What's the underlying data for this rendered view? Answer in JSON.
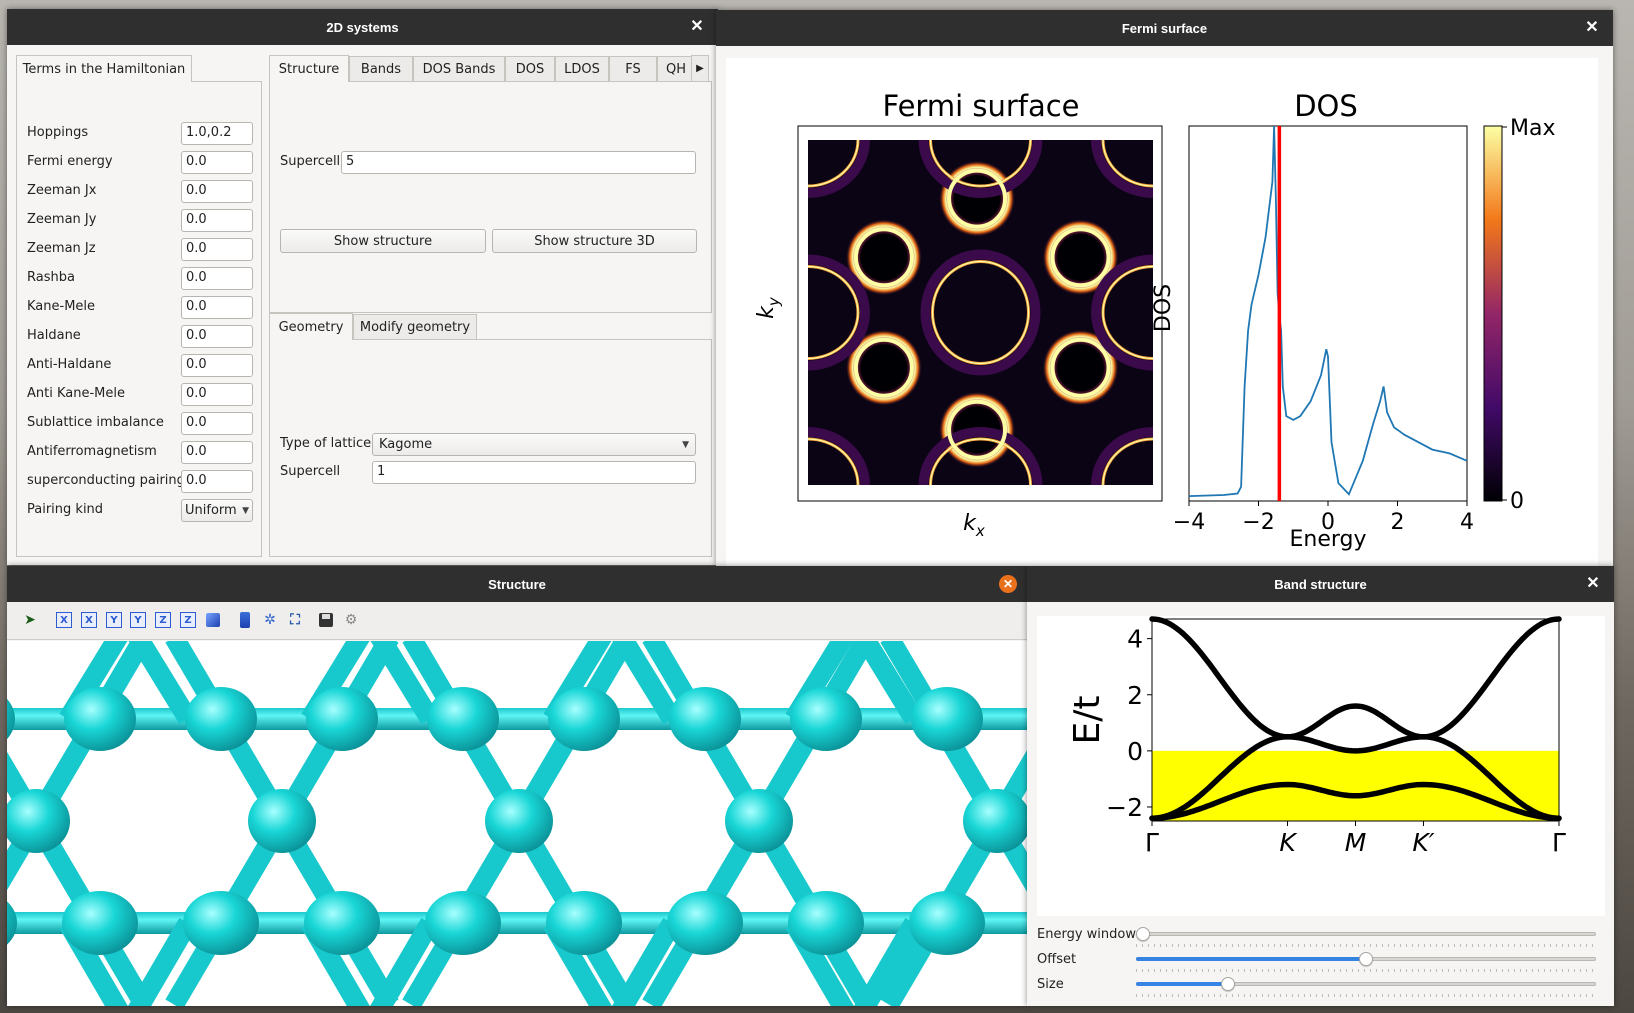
{
  "windows": {
    "systems": {
      "title": "2D systems"
    },
    "fermi": {
      "title": "Fermi surface"
    },
    "structure": {
      "title": "Structure"
    },
    "bands": {
      "title": "Band structure"
    }
  },
  "hamiltonian": {
    "tab_label": "Terms in the Hamiltonian",
    "fields": [
      {
        "label": "Hoppings",
        "value": "1.0,0.2"
      },
      {
        "label": "Fermi energy",
        "value": "0.0"
      },
      {
        "label": "Zeeman Jx",
        "value": "0.0"
      },
      {
        "label": "Zeeman Jy",
        "value": "0.0"
      },
      {
        "label": "Zeeman Jz",
        "value": "0.0"
      },
      {
        "label": "Rashba",
        "value": "0.0"
      },
      {
        "label": "Kane-Mele",
        "value": "0.0"
      },
      {
        "label": "Haldane",
        "value": "0.0"
      },
      {
        "label": "Anti-Haldane",
        "value": "0.0"
      },
      {
        "label": "Anti Kane-Mele",
        "value": "0.0"
      },
      {
        "label": "Sublattice imbalance",
        "value": "0.0"
      },
      {
        "label": "Antiferromagnetism",
        "value": "0.0"
      },
      {
        "label": "superconducting pairing",
        "value": "0.0"
      }
    ],
    "pairing_kind": {
      "label": "Pairing kind",
      "value": "Uniform"
    }
  },
  "analysis_tabs": [
    "Structure",
    "Bands",
    "DOS Bands",
    "DOS",
    "LDOS",
    "FS",
    "QH"
  ],
  "structure_tab": {
    "supercell_label": "Supercell",
    "supercell_value": "5",
    "show_structure": "Show structure",
    "show_structure_3d": "Show structure 3D"
  },
  "geometry_tabs": [
    "Geometry",
    "Modify geometry"
  ],
  "geometry": {
    "lattice_label": "Type of lattice",
    "lattice_value": "Kagome",
    "supercell_label": "Supercell",
    "supercell_value": "1"
  },
  "fermi_plot": {
    "fs_title": "Fermi surface",
    "dos_title": "DOS",
    "kx": "k",
    "kx_sub": "x",
    "ky": "k",
    "ky_sub": "y",
    "dos_ylabel": "DOS",
    "dos_xlabel": "Energy",
    "cbar_max": "Max",
    "cbar_min": "0",
    "dos_xticks": [
      "−4",
      "−2",
      "0",
      "2",
      "4"
    ]
  },
  "toolbar_icons": [
    "select-icon",
    "view-x-icon",
    "view-x-neg-icon",
    "view-y-icon",
    "view-y-neg-icon",
    "view-z-icon",
    "view-z-neg-icon",
    "iso-view-icon",
    "parallel-projection-icon",
    "axes-icon",
    "fit-view-icon",
    "save-icon",
    "settings-icon"
  ],
  "toolbar_labels": {
    "x": "X",
    "y": "Y",
    "z": "Z"
  },
  "band_sliders": [
    {
      "label": "Energy window",
      "value": 0.0
    },
    {
      "label": "Offset",
      "value": 0.5
    },
    {
      "label": "Size",
      "value": 0.19
    }
  ],
  "chart_data": [
    {
      "type": "line",
      "title": "DOS",
      "xlabel": "Energy",
      "ylabel": "DOS",
      "xlim": [
        -4,
        4
      ],
      "xticks": [
        -4,
        -2,
        0,
        2,
        4
      ],
      "x": [
        -4.0,
        -3.0,
        -2.6,
        -2.5,
        -2.4,
        -2.3,
        -2.2,
        -2.0,
        -1.8,
        -1.6,
        -1.55,
        -1.5,
        -1.45,
        -1.4,
        -1.35,
        -1.3,
        -1.2,
        -1.0,
        -0.8,
        -0.5,
        -0.2,
        -0.05,
        0.0,
        0.1,
        0.3,
        0.6,
        1.0,
        1.3,
        1.5,
        1.6,
        1.7,
        1.9,
        2.2,
        2.6,
        3.0,
        3.5,
        4.0
      ],
      "y": [
        0.005,
        0.008,
        0.012,
        0.03,
        0.3,
        0.45,
        0.52,
        0.6,
        0.7,
        0.85,
        1.0,
        0.8,
        0.55,
        0.49,
        0.45,
        0.3,
        0.22,
        0.21,
        0.22,
        0.26,
        0.33,
        0.4,
        0.38,
        0.15,
        0.04,
        0.01,
        0.1,
        0.2,
        0.26,
        0.3,
        0.23,
        0.19,
        0.17,
        0.15,
        0.13,
        0.12,
        0.1
      ],
      "fermi_line": -1.4,
      "line_color": "#1f77b4",
      "fermi_color": "#ff0000"
    },
    {
      "type": "line",
      "title": "",
      "ylabel": "E/t",
      "ylim": [
        -2.5,
        4.7
      ],
      "yticks": [
        4,
        2,
        0,
        -2
      ],
      "ytick_labels": [
        "4",
        "2",
        "0",
        "−2"
      ],
      "xticks": [
        "Γ",
        "K",
        "M",
        "K′",
        "Γ"
      ],
      "xtick_positions": [
        0,
        0.333,
        0.5,
        0.667,
        1
      ],
      "fill_range": [
        -2.5,
        0
      ],
      "fill_color": "#ffff00",
      "series": [
        {
          "x": [
            0,
            0.333,
            0.5,
            0.667,
            1
          ],
          "values": [
            4.7,
            0.5,
            1.6,
            0.5,
            4.7
          ]
        },
        {
          "x": [
            0,
            0.333,
            0.5,
            0.667,
            1
          ],
          "values": [
            -2.4,
            0.5,
            0.0,
            0.5,
            -2.4
          ]
        },
        {
          "x": [
            0,
            0.333,
            0.5,
            0.667,
            1
          ],
          "values": [
            -2.4,
            -1.2,
            -1.6,
            -1.2,
            -2.4
          ]
        }
      ]
    }
  ]
}
